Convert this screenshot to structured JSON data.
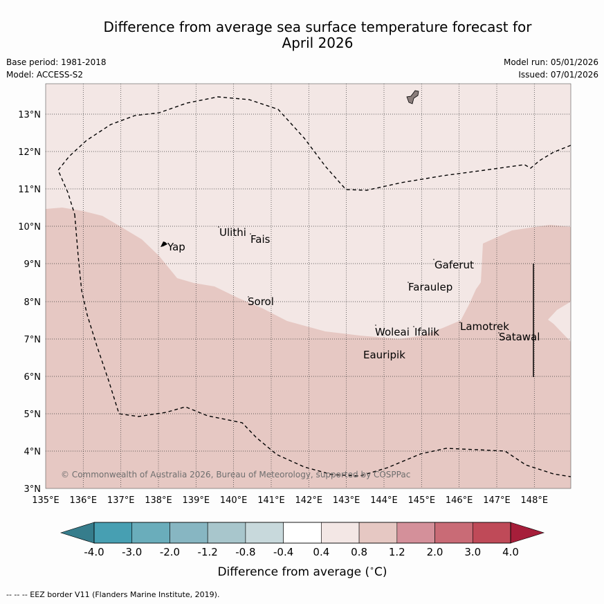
{
  "title": {
    "line1": "Difference from average sea surface temperature forecast for",
    "line2": "April 2026"
  },
  "meta": {
    "base_period": "Base period: 1981-2018",
    "model": "Model: ACCESS-S2",
    "model_run": "Model run: 05/01/2026",
    "issued": "Issued: 07/01/2026"
  },
  "map": {
    "lat_labels": [
      "13°N",
      "12°N",
      "11°N",
      "10°N",
      "9°N",
      "8°N",
      "7°N",
      "6°N",
      "5°N",
      "4°N",
      "3°N"
    ],
    "lon_labels": [
      "135°E",
      "136°E",
      "137°E",
      "138°E",
      "139°E",
      "140°E",
      "141°E",
      "142°E",
      "143°E",
      "144°E",
      "145°E",
      "146°E",
      "147°E",
      "148°E"
    ],
    "places": [
      "Yap",
      "Ulithi",
      "Fais",
      "Gaferut",
      "Faraulep",
      "Sorol",
      "Woleai",
      "Ifalik",
      "Lamotrek",
      "Satawal",
      "Eauripik"
    ],
    "copyright": "© Commonwealth of Australia 2026, Bureau of Meteorology, supported by COSPPac"
  },
  "colorbar": {
    "labels": [
      "-4.0",
      "-3.0",
      "-2.0",
      "-1.2",
      "-0.8",
      "-0.4",
      "0.4",
      "0.8",
      "1.2",
      "2.0",
      "3.0",
      "4.0"
    ],
    "colors": [
      "#479fb2",
      "#6aadbb",
      "#87b6c2",
      "#a8c6cc",
      "#c8d9dc",
      "#ffffff",
      "#f3e7e5",
      "#e6c8c3",
      "#d4909a",
      "#c96b76",
      "#bf4a58"
    ],
    "low_extend_color": "#367d8c",
    "high_extend_color": "#a61e3a",
    "label": "Difference from average (",
    "unit_c": "C)",
    "unit_degree": "∘"
  },
  "colors": {
    "band_0_4_0_8": "#f3e7e5",
    "band_0_8_1_2": "#e6c8c3"
  },
  "footnote": "--  --  -- EEZ border V11 (Flanders Marine Institute, 2019)."
}
